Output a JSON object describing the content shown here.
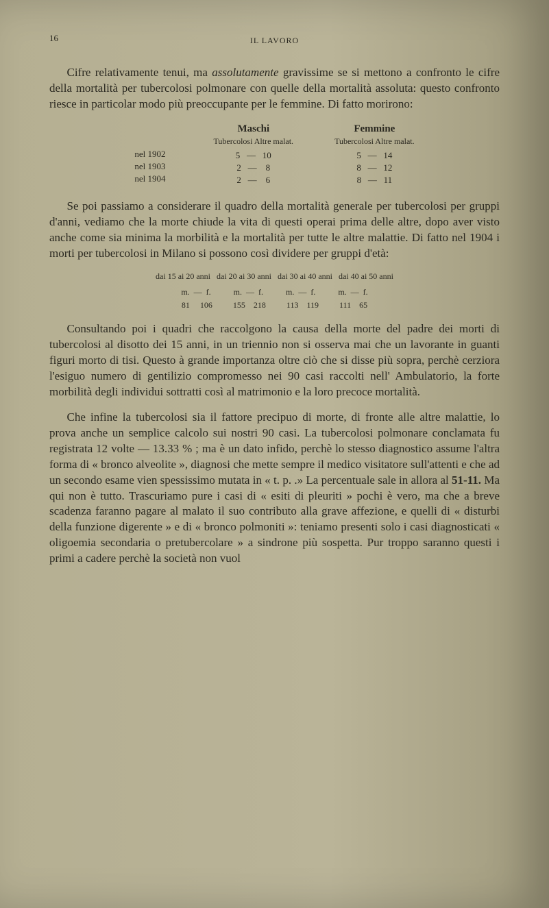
{
  "page": {
    "number": "16",
    "headerTitle": "IL LAVORO"
  },
  "para1": {
    "prefix": "Cifre relativamente tenui, ma ",
    "italic": "assolutamente",
    "suffix": " gravissime se si mettono a confronto le cifre della mortalità per tubercolosi polmonare con quelle della mortalità assoluta: questo confronto riesce in particolar modo più preoccupante per le femmine. Di fatto morirono:"
  },
  "table1": {
    "maschi": {
      "heading": "Maschi",
      "sub": "Tubercolosi  Altre malat."
    },
    "femmine": {
      "heading": "Femmine",
      "sub": "Tubercolosi  Altre malat."
    },
    "years": {
      "r1": "nel 1902",
      "r2": "nel 1903",
      "r3": "nel 1904"
    },
    "maschi_rows": {
      "r1": "5   —   10",
      "r2": "2   —    8",
      "r3": "2   —    6"
    },
    "femmine_rows": {
      "r1": "5   —   14",
      "r2": "8   —   12",
      "r3": "8   —   11"
    }
  },
  "para2": "Se poi passiamo a considerare il quadro della mortalità generale per tubercolosi per gruppi d'anni, vediamo che la morte chiude la vita di questi operai prima delle altre, dopo aver visto anche come sia minima la morbilità e la mortalità per tutte le altre malattie. Di fatto nel 1904 i morti per tubercolosi in Milano si possono così dividere per gruppi d'età:",
  "data": {
    "line1": "dai 15 ai 20 anni   dai 20 ai 30 anni   dai 30 ai 40 anni   dai 40 ai 50 anni",
    "line2": "  m.  —  f.           m.  —  f.           m.  —  f.           m.  —  f.  ",
    "line3": "  81     106          155    218          113    119          111    65  "
  },
  "para3": {
    "prefix": "Consultando poi i quadri che raccolgono la causa della morte del padre dei morti di tubercolosi al disotto dei 15 anni, in un triennio non si osserva mai che un lavorante in guanti figuri morto di tisi. Questo à grande importanza oltre ciò che si disse più sopra, perchè cerziora l'esiguo numero di gentilizio compromesso nei 90 casi raccolti nell' Ambulatorio, la forte morbilità degli individui sottratti così al matrimonio e la loro precoce mortalità."
  },
  "para4": {
    "text": "Che infine la tubercolosi sia il fattore precipuo di morte, di fronte alle altre malattie, lo prova anche un semplice calcolo sui nostri 90 casi. La tubercolosi polmonare conclamata fu registrata 12 volte — 13.33 % ; ma è un dato infido, perchè lo stesso diagnostico assume l'altra forma di « bronco alveolite », diagnosi che mette sempre il medico visitatore sull'attenti e che ad un secondo esame vien spessissimo mutata in « t. p. .» La percentuale sale in allora al ",
    "bold": "51-11.",
    "text2": " Ma qui non è tutto. Trascuriamo pure i casi di « esiti di pleuriti » pochi è vero, ma che a breve scadenza faranno pagare al malato il suo contributo alla grave affezione, e quelli di « disturbi della funzione digerente » e di « bronco polmoniti »: teniamo presenti solo i casi diagnosticati « oligoemia secondaria o pretubercolare » a sindrone più sospetta. Pur troppo saranno questi i primi a cadere perchè la società non vuol"
  }
}
